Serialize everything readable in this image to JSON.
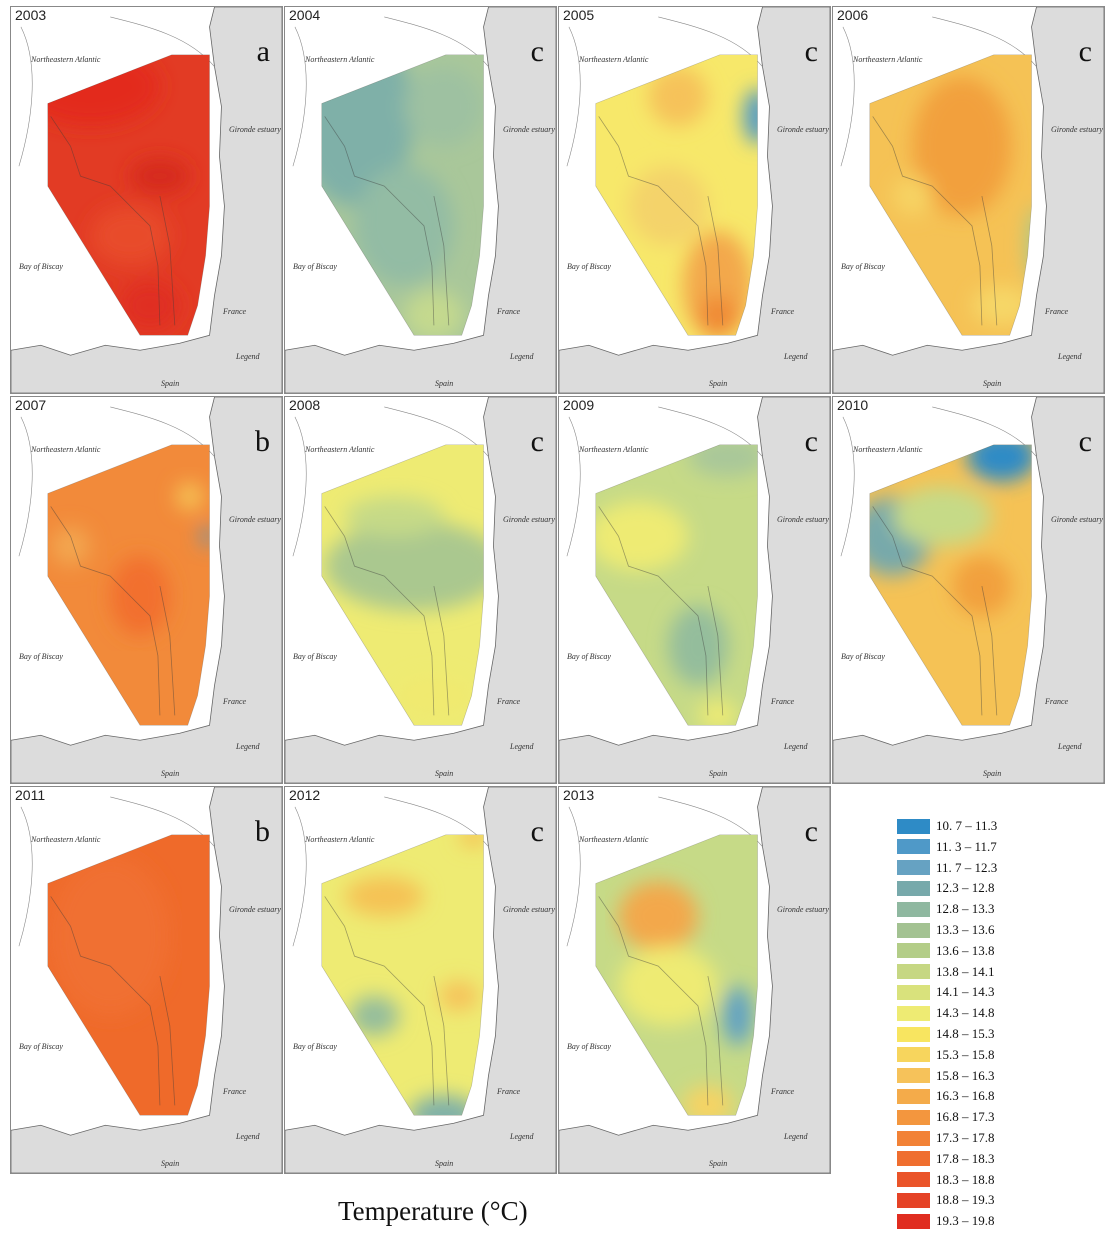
{
  "panels": [
    {
      "year": "2003",
      "letter": "a",
      "base": "#e23b24",
      "blobs": [
        [
          "#e32b1e",
          80,
          80,
          70,
          40
        ],
        [
          "#d62b1f",
          150,
          170,
          30,
          18
        ],
        [
          "#e84b2c",
          120,
          230,
          40,
          30
        ],
        [
          "#e02d20",
          140,
          300,
          30,
          25
        ]
      ]
    },
    {
      "year": "2004",
      "letter": "c",
      "base": "#a9c79a",
      "blobs": [
        [
          "#7fb0a8",
          70,
          110,
          60,
          90
        ],
        [
          "#93bca4",
          120,
          220,
          50,
          60
        ],
        [
          "#c4d98e",
          150,
          310,
          30,
          25
        ],
        [
          "#9ec1a1",
          160,
          100,
          40,
          40
        ]
      ]
    },
    {
      "year": "2005",
      "letter": "c",
      "base": "#f7e86a",
      "blobs": [
        [
          "#4f99c8",
          200,
          110,
          14,
          28
        ],
        [
          "#f3a84b",
          160,
          280,
          35,
          55
        ],
        [
          "#f6c25a",
          120,
          90,
          30,
          30
        ],
        [
          "#f08a35",
          160,
          310,
          20,
          20
        ],
        [
          "#f4d36a",
          110,
          200,
          40,
          40
        ]
      ]
    },
    {
      "year": "2006",
      "letter": "c",
      "base": "#f5c255",
      "blobs": [
        [
          "#f2a03d",
          130,
          140,
          50,
          70
        ],
        [
          "#f6d364",
          80,
          190,
          20,
          20
        ],
        [
          "#a8c98a",
          205,
          240,
          10,
          40
        ],
        [
          "#f6d768",
          170,
          300,
          30,
          20
        ]
      ]
    },
    {
      "year": "2007",
      "letter": "b",
      "base": "#f28a3a",
      "blobs": [
        [
          "#f26f2e",
          130,
          200,
          30,
          40
        ],
        [
          "#f5c255",
          180,
          100,
          14,
          14
        ],
        [
          "#4f99c8",
          198,
          140,
          6,
          10
        ],
        [
          "#f3a650",
          60,
          150,
          20,
          20
        ]
      ]
    },
    {
      "year": "2008",
      "letter": "c",
      "base": "#eeeb73",
      "blobs": [
        [
          "#aac88f",
          130,
          170,
          90,
          45
        ],
        [
          "#c6da87",
          110,
          120,
          50,
          20
        ],
        [
          "#f0ea70",
          150,
          300,
          40,
          20
        ]
      ]
    },
    {
      "year": "2009",
      "letter": "c",
      "base": "#c6da87",
      "blobs": [
        [
          "#eeeb73",
          80,
          140,
          50,
          35
        ],
        [
          "#94bd9c",
          140,
          250,
          30,
          40
        ],
        [
          "#a9c79a",
          170,
          60,
          40,
          20
        ],
        [
          "#eeeb73",
          160,
          320,
          20,
          15
        ]
      ]
    },
    {
      "year": "2010",
      "letter": "c",
      "base": "#f5c255",
      "blobs": [
        [
          "#2e8bc6",
          170,
          60,
          35,
          25
        ],
        [
          "#77a9ab",
          60,
          140,
          40,
          40
        ],
        [
          "#c6da87",
          110,
          120,
          50,
          30
        ],
        [
          "#f2a03d",
          150,
          190,
          30,
          30
        ]
      ]
    },
    {
      "year": "2011",
      "letter": "b",
      "base": "#ef6a2a",
      "blobs": [
        [
          "#f07030",
          100,
          150,
          60,
          80
        ]
      ]
    },
    {
      "year": "2012",
      "letter": "c",
      "base": "#eeeb73",
      "blobs": [
        [
          "#f5c255",
          100,
          110,
          40,
          20
        ],
        [
          "#7fb0a8",
          160,
          330,
          35,
          20
        ],
        [
          "#94bd9c",
          90,
          230,
          25,
          20
        ],
        [
          "#f6c25a",
          175,
          210,
          20,
          15
        ],
        [
          "#f5c255",
          190,
          50,
          15,
          10
        ]
      ]
    },
    {
      "year": "2013",
      "letter": "c",
      "base": "#c6da87",
      "blobs": [
        [
          "#f3a84b",
          100,
          130,
          40,
          35
        ],
        [
          "#eeeb73",
          110,
          200,
          50,
          40
        ],
        [
          "#5fa0c4",
          180,
          230,
          15,
          30
        ],
        [
          "#f6d364",
          150,
          320,
          25,
          20
        ]
      ]
    }
  ],
  "map_labels": {
    "ocean": "Bay of Biscay",
    "country": "France",
    "spain": "Spain",
    "north": "Northeastern Atlantic",
    "estuary": "Gironde estuary",
    "legend": "Legend"
  },
  "legend": [
    {
      "color": "#2e8bc6",
      "label": "10. 7 – 11.3"
    },
    {
      "color": "#4f99c8",
      "label": "11. 3 – 11.7"
    },
    {
      "color": "#66a2c2",
      "label": "11. 7 – 12.3"
    },
    {
      "color": "#77a9ab",
      "label": "12.3 – 12.8"
    },
    {
      "color": "#8fb8a0",
      "label": "12.8 – 13.3"
    },
    {
      "color": "#a3c292",
      "label": "13.3 – 13.6"
    },
    {
      "color": "#b3cd88",
      "label": "13.6 – 13.8"
    },
    {
      "color": "#c6d783",
      "label": "13.8 – 14.1"
    },
    {
      "color": "#d9e27c",
      "label": "14.1 – 14.3"
    },
    {
      "color": "#eeeb73",
      "label": "14.3 – 14.8"
    },
    {
      "color": "#f8e560",
      "label": "14.8 – 15.3"
    },
    {
      "color": "#f7d55d",
      "label": "15.3 – 15.8"
    },
    {
      "color": "#f6c25a",
      "label": "15.8 – 16.3"
    },
    {
      "color": "#f4ab4a",
      "label": "16.3 – 16.8"
    },
    {
      "color": "#f3963e",
      "label": "16.8 – 17.3"
    },
    {
      "color": "#f28236",
      "label": "17.3 – 17.8"
    },
    {
      "color": "#ef6e2f",
      "label": "17.8 – 18.3"
    },
    {
      "color": "#ea5429",
      "label": "18.3 – 18.8"
    },
    {
      "color": "#e54326",
      "label": "18.8 – 19.3"
    },
    {
      "color": "#e02d20",
      "label": "19.3 – 19.8"
    }
  ],
  "caption": "Temperature (°C)"
}
